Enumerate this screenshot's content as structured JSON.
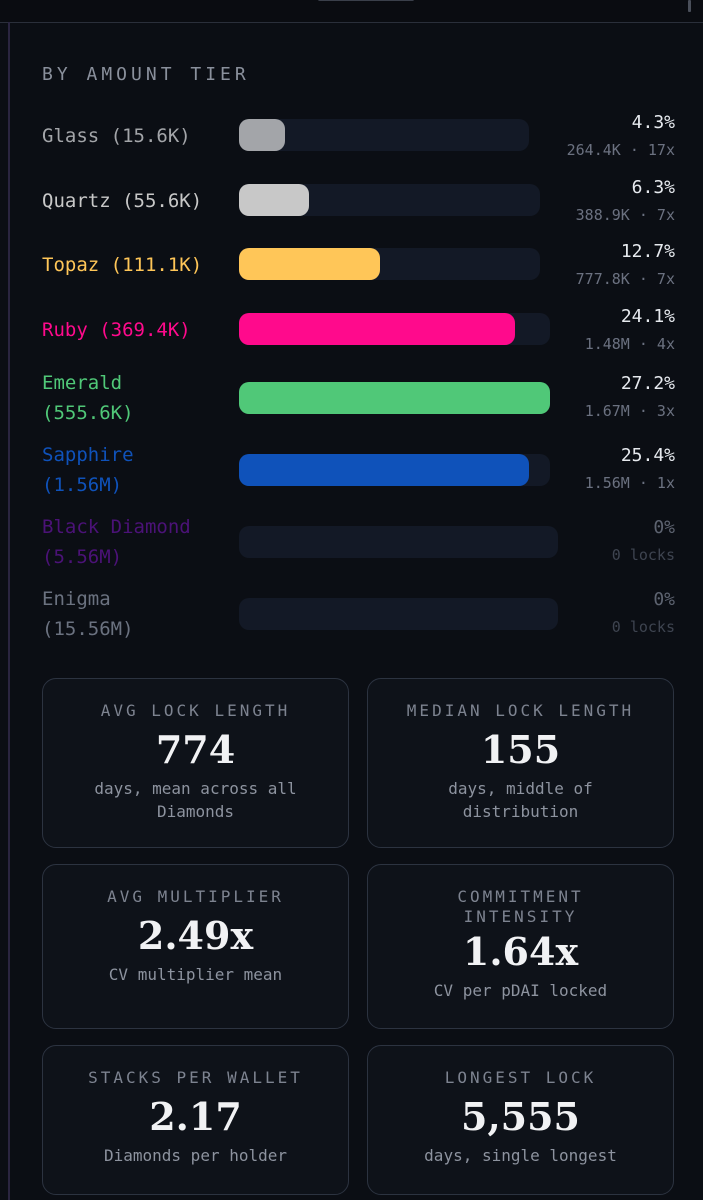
{
  "section": {
    "title": "BY AMOUNT TIER"
  },
  "tiers": [
    {
      "label": "Glass (15.6K)",
      "color": "#a3a5a9",
      "percent": "4.3%",
      "detail": "264.4K · 17x",
      "share": 0.043
    },
    {
      "label": "Quartz (55.6K)",
      "color": "#c8c8c8",
      "percent": "6.3%",
      "detail": "388.9K · 7x",
      "share": 0.063
    },
    {
      "label": "Topaz (111.1K)",
      "color": "#ffc658",
      "percent": "12.7%",
      "detail": "777.8K · 7x",
      "share": 0.127
    },
    {
      "label": "Ruby (369.4K)",
      "color": "#ff0a8c",
      "percent": "24.1%",
      "detail": "1.48M · 4x",
      "share": 0.241
    },
    {
      "label": "Emerald\n(555.6K)",
      "color": "#50c878",
      "percent": "27.2%",
      "detail": "1.67M · 3x",
      "share": 0.272
    },
    {
      "label": "Sapphire\n(1.56M)",
      "color": "#0f52ba",
      "percent": "25.4%",
      "detail": "1.56M · 1x",
      "share": 0.254
    },
    {
      "label": "Black Diamond\n(5.56M)",
      "color": "#4b1277",
      "percent": "0%",
      "detail": "0 locks",
      "share": 0
    },
    {
      "label": "Enigma\n(15.56M)",
      "color": "#6b7280",
      "percent": "0%",
      "detail": "0 locks",
      "share": 0
    }
  ],
  "cards": [
    {
      "title": "AVG LOCK LENGTH",
      "value": "774",
      "desc": "days, mean across all Diamonds"
    },
    {
      "title": "MEDIAN LOCK LENGTH",
      "value": "155",
      "desc": "days, middle of distribution"
    },
    {
      "title": "AVG MULTIPLIER",
      "value": "2.49x",
      "desc": "CV multiplier mean"
    },
    {
      "title": "COMMITMENT INTENSITY",
      "value": "1.64x",
      "desc": "CV per pDAI locked"
    },
    {
      "title": "STACKS PER WALLET",
      "value": "2.17",
      "desc": "Diamonds per holder"
    },
    {
      "title": "LONGEST LOCK",
      "value": "5,555",
      "desc": "days, single longest"
    }
  ]
}
